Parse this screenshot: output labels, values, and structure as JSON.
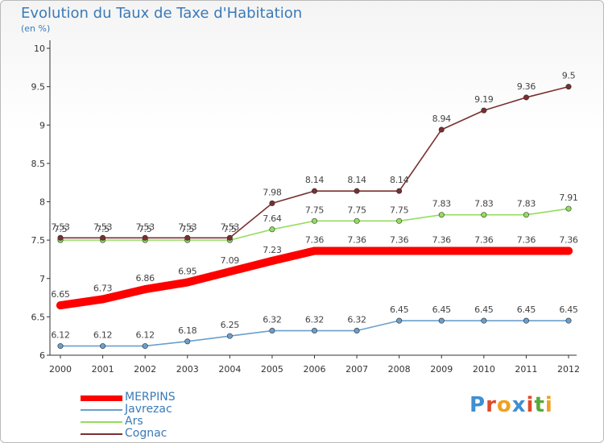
{
  "header": {
    "title": "Evolution du Taux de Taxe d'Habitation",
    "subtitle": "(en %)"
  },
  "logo": {
    "text": "Proxiti",
    "colors": [
      "#3f8fd2",
      "#e04a2a",
      "#f0a020",
      "#3f8fd2",
      "#e04a2a",
      "#5aa83a",
      "#f0a020"
    ]
  },
  "chart_data": {
    "type": "line",
    "title": "Evolution du Taux de Taxe d'Habitation",
    "subtitle": "(en %)",
    "x": [
      "2000",
      "2001",
      "2002",
      "2003",
      "2004",
      "2005",
      "2006",
      "2007",
      "2008",
      "2009",
      "2010",
      "2011",
      "2012"
    ],
    "ylim": [
      6,
      10
    ],
    "yticks": [
      "6",
      "6.5",
      "7",
      "7.5",
      "8",
      "8.5",
      "9",
      "9.5",
      "10"
    ],
    "grid": false,
    "legend_position": "bottom-left",
    "series": [
      {
        "name": "MERPINS",
        "color": "#ff0000",
        "values": [
          6.65,
          6.73,
          6.86,
          6.95,
          7.09,
          7.23,
          7.36,
          7.36,
          7.36,
          7.36,
          7.36,
          7.36,
          7.36
        ],
        "labels": [
          "6.65",
          "6.73",
          "6.86",
          "6.95",
          "7.09",
          "7.23",
          "7.36",
          "7.36",
          "7.36",
          "7.36",
          "7.36",
          "7.36",
          "7.36"
        ]
      },
      {
        "name": "Javrezac",
        "color": "#6b9fcc",
        "values": [
          6.12,
          6.12,
          6.12,
          6.18,
          6.25,
          6.32,
          6.32,
          6.32,
          6.45,
          6.45,
          6.45,
          6.45,
          6.45
        ],
        "labels": [
          "6.12",
          "6.12",
          "6.12",
          "6.18",
          "6.25",
          "6.32",
          "6.32",
          "6.32",
          "6.45",
          "6.45",
          "6.45",
          "6.45",
          "6.45"
        ]
      },
      {
        "name": "Ars",
        "color": "#94dd5e",
        "values": [
          7.5,
          7.5,
          7.5,
          7.5,
          7.5,
          7.64,
          7.75,
          7.75,
          7.75,
          7.83,
          7.83,
          7.83,
          7.91
        ],
        "labels": [
          "7.5",
          "7.5",
          "7.5",
          "7.5",
          "7.5",
          "7.64",
          "7.75",
          "7.75",
          "7.75",
          "7.83",
          "7.83",
          "7.83",
          "7.91"
        ]
      },
      {
        "name": "Cognac",
        "color": "#7a3030",
        "values": [
          7.53,
          7.53,
          7.53,
          7.53,
          7.53,
          7.98,
          8.14,
          8.14,
          8.14,
          8.94,
          9.19,
          9.36,
          9.5
        ],
        "labels": [
          "7.53",
          "7.53",
          "7.53",
          "7.53",
          "7.53",
          "7.98",
          "8.14",
          "8.14",
          "8.14",
          "8.94",
          "9.19",
          "9.36",
          "9.5"
        ]
      }
    ]
  }
}
